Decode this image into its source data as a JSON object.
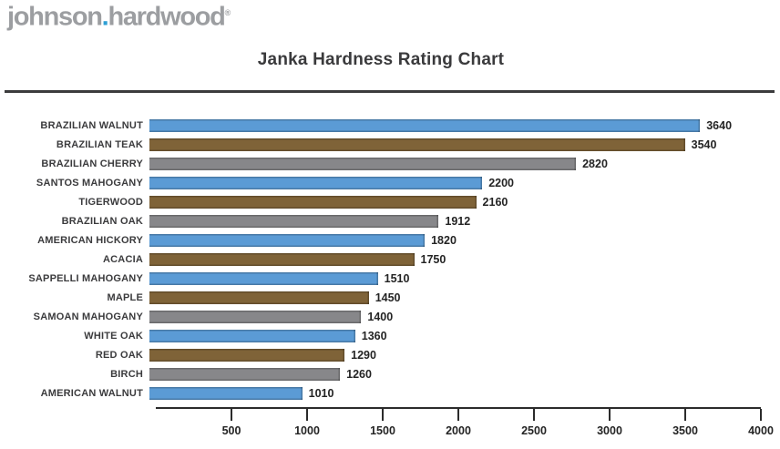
{
  "logo": {
    "part1": "johnson",
    "dot": ".",
    "part2": "hardwood",
    "reg": "®",
    "gray": "#9c9ea1",
    "blue": "#2e9fd4"
  },
  "title": "Janka Hardness Rating Chart",
  "chart_data": {
    "type": "bar",
    "orientation": "horizontal",
    "title": "Janka Hardness Rating Chart",
    "categories": [
      "BRAZILIAN WALNUT",
      "BRAZILIAN TEAK",
      "BRAZILIAN CHERRY",
      "SANTOS MAHOGANY",
      "TIGERWOOD",
      "BRAZILIAN OAK",
      "AMERICAN HICKORY",
      "ACACIA",
      "SAPPELLI MAHOGANY",
      "MAPLE",
      "SAMOAN MAHOGANY",
      "WHITE OAK",
      "RED OAK",
      "BIRCH",
      "AMERICAN WALNUT"
    ],
    "values": [
      3640,
      3540,
      2820,
      2200,
      2160,
      1912,
      1820,
      1750,
      1510,
      1450,
      1400,
      1360,
      1290,
      1260,
      1010
    ],
    "bar_colors": [
      "blue",
      "brown",
      "gray",
      "blue",
      "brown",
      "gray",
      "blue",
      "brown",
      "blue",
      "brown",
      "gray",
      "blue",
      "brown",
      "gray",
      "blue"
    ],
    "palette": {
      "blue": "#5b9bd5",
      "brown": "#7f6338",
      "gray": "#87878a"
    },
    "value_labels_shown": true,
    "xlabel": "",
    "ylabel": "",
    "xlim": [
      0,
      4000
    ],
    "x_ticks": [
      500,
      1000,
      1500,
      2000,
      2500,
      3000,
      3500,
      4000
    ],
    "grid": false,
    "legend": false
  }
}
